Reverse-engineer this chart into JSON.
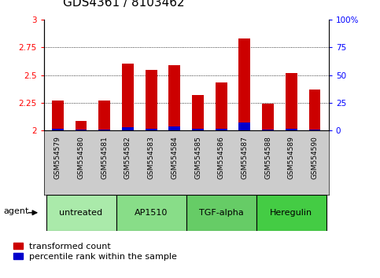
{
  "title": "GDS4361 / 8103462",
  "samples": [
    "GSM554579",
    "GSM554580",
    "GSM554581",
    "GSM554582",
    "GSM554583",
    "GSM554584",
    "GSM554585",
    "GSM554586",
    "GSM554587",
    "GSM554588",
    "GSM554589",
    "GSM554590"
  ],
  "red_values": [
    2.27,
    2.09,
    2.27,
    2.6,
    2.55,
    2.59,
    2.32,
    2.43,
    2.83,
    2.24,
    2.52,
    2.37
  ],
  "blue_values": [
    2.02,
    2.01,
    2.01,
    2.03,
    2.02,
    2.04,
    2.02,
    2.02,
    2.07,
    2.01,
    2.02,
    2.01
  ],
  "ylim": [
    2.0,
    3.0
  ],
  "yticks": [
    2.0,
    2.25,
    2.5,
    2.75,
    3.0
  ],
  "ytick_labels": [
    "2",
    "2.25",
    "2.5",
    "2.75",
    "3"
  ],
  "right_yticks": [
    0,
    25,
    50,
    75,
    100
  ],
  "right_ytick_labels": [
    "0",
    "25",
    "50",
    "75",
    "100%"
  ],
  "groups": [
    {
      "label": "untreated",
      "start": 0,
      "end": 3,
      "color": "#aaeaaa"
    },
    {
      "label": "AP1510",
      "start": 3,
      "end": 6,
      "color": "#88dd88"
    },
    {
      "label": "TGF-alpha",
      "start": 6,
      "end": 9,
      "color": "#66cc66"
    },
    {
      "label": "Heregulin",
      "start": 9,
      "end": 12,
      "color": "#44cc44"
    }
  ],
  "bar_width": 0.5,
  "red_color": "#cc0000",
  "blue_color": "#0000cc",
  "legend_red_label": "transformed count",
  "legend_blue_label": "percentile rank within the sample",
  "agent_label": "agent",
  "background_gray": "#cccccc",
  "title_fontsize": 11,
  "tick_fontsize": 7.5,
  "label_fontsize": 6.5,
  "group_fontsize": 8
}
